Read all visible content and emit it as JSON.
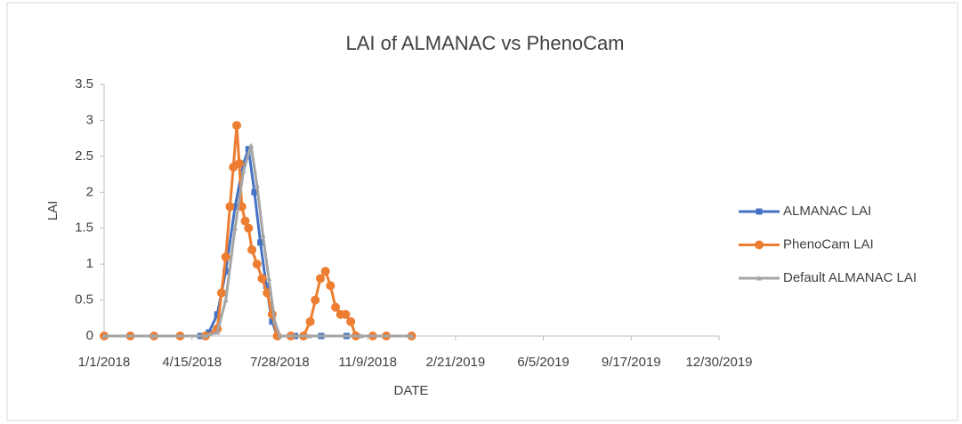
{
  "chart_data": {
    "type": "line",
    "title": "LAI of ALMANAC vs PhenoCam",
    "xlabel": "DATE",
    "ylabel": "LAI",
    "xlim": [
      "1/1/2018",
      "12/30/2019"
    ],
    "xticks": [
      "1/1/2018",
      "4/15/2018",
      "7/28/2018",
      "11/9/2018",
      "2/21/2019",
      "6/5/2019",
      "9/17/2019",
      "12/30/2019"
    ],
    "ylim": [
      0,
      3.5
    ],
    "yticks": [
      0,
      0.5,
      1,
      1.5,
      2,
      2.5,
      3,
      3.5
    ],
    "grid": false,
    "legend": "right",
    "series": [
      {
        "name": "ALMANAC LAI",
        "color": "#4472c4",
        "marker": "square",
        "x": [
          "1/1/2018",
          "2/1/2018",
          "3/1/2018",
          "4/1/2018",
          "4/25/2018",
          "5/5/2018",
          "5/15/2018",
          "5/25/2018",
          "6/5/2018",
          "6/15/2018",
          "6/21/2018",
          "6/28/2018",
          "7/5/2018",
          "7/12/2018",
          "7/19/2018",
          "7/25/2018",
          "8/15/2018",
          "9/15/2018",
          "10/15/2018",
          "11/15/2018",
          "12/31/2018"
        ],
        "values": [
          0,
          0,
          0,
          0,
          0,
          0.05,
          0.3,
          0.9,
          1.8,
          2.4,
          2.6,
          2.0,
          1.3,
          0.7,
          0.2,
          0,
          0,
          0,
          0,
          0,
          0
        ]
      },
      {
        "name": "PhenoCam LAI",
        "color": "#ed7d31",
        "marker": "circle",
        "x": [
          "1/1/2018",
          "2/1/2018",
          "3/1/2018",
          "4/1/2018",
          "5/1/2018",
          "5/15/2018",
          "5/20/2018",
          "5/25/2018",
          "5/30/2018",
          "6/3/2018",
          "6/7/2018",
          "6/10/2018",
          "6/13/2018",
          "6/17/2018",
          "6/21/2018",
          "6/25/2018",
          "7/1/2018",
          "7/7/2018",
          "7/13/2018",
          "7/19/2018",
          "7/25/2018",
          "8/10/2018",
          "8/25/2018",
          "9/2/2018",
          "9/8/2018",
          "9/14/2018",
          "9/20/2018",
          "9/26/2018",
          "10/2/2018",
          "10/8/2018",
          "10/14/2018",
          "10/20/2018",
          "10/26/2018",
          "11/15/2018",
          "12/1/2018",
          "12/31/2018"
        ],
        "values": [
          0,
          0,
          0,
          0,
          0,
          0.1,
          0.6,
          1.1,
          1.8,
          2.35,
          2.93,
          2.4,
          1.8,
          1.6,
          1.5,
          1.2,
          1.0,
          0.8,
          0.6,
          0.3,
          0,
          0,
          0,
          0.2,
          0.5,
          0.8,
          0.9,
          0.7,
          0.4,
          0.3,
          0.3,
          0.2,
          0,
          0,
          0,
          0
        ]
      },
      {
        "name": "Default ALMANAC LAI",
        "color": "#a5a5a5",
        "marker": "triangle",
        "x": [
          "1/1/2018",
          "3/1/2018",
          "5/1/2018",
          "5/15/2018",
          "5/25/2018",
          "6/5/2018",
          "6/15/2018",
          "6/24/2018",
          "7/1/2018",
          "7/8/2018",
          "7/15/2018",
          "7/22/2018",
          "7/28/2018",
          "9/1/2018",
          "11/1/2018",
          "12/31/2018"
        ],
        "values": [
          0,
          0,
          0,
          0.05,
          0.5,
          1.5,
          2.3,
          2.65,
          2.1,
          1.4,
          0.8,
          0.2,
          0,
          0,
          0,
          0
        ]
      }
    ]
  }
}
